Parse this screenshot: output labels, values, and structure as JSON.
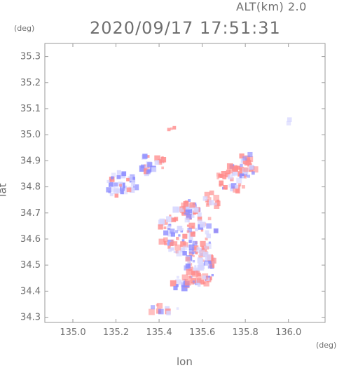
{
  "header": {
    "altitude": "ALT(km) 2.0",
    "timestamp": "2020/09/17 17:51:31"
  },
  "units": {
    "lat": "(deg)",
    "lon": "(deg)"
  },
  "axes": {
    "xlabel": "lon",
    "ylabel": "lat",
    "xticks": [
      "135.0",
      "135.2",
      "135.4",
      "135.6",
      "135.8",
      "136.0"
    ],
    "yticks": [
      "35.3",
      "35.2",
      "35.1",
      "35.0",
      "34.9",
      "34.8",
      "34.7",
      "34.6",
      "34.5",
      "34.4",
      "34.3"
    ]
  },
  "chart_data": {
    "type": "heatmap",
    "xlabel": "lon",
    "ylabel": "lat",
    "xlim": [
      134.87,
      136.17
    ],
    "ylim": [
      34.28,
      35.35
    ],
    "colors": {
      "positive": "#ff8c8c",
      "negative": "#8c8cff",
      "neutral": "#d6d6ff"
    }
  }
}
